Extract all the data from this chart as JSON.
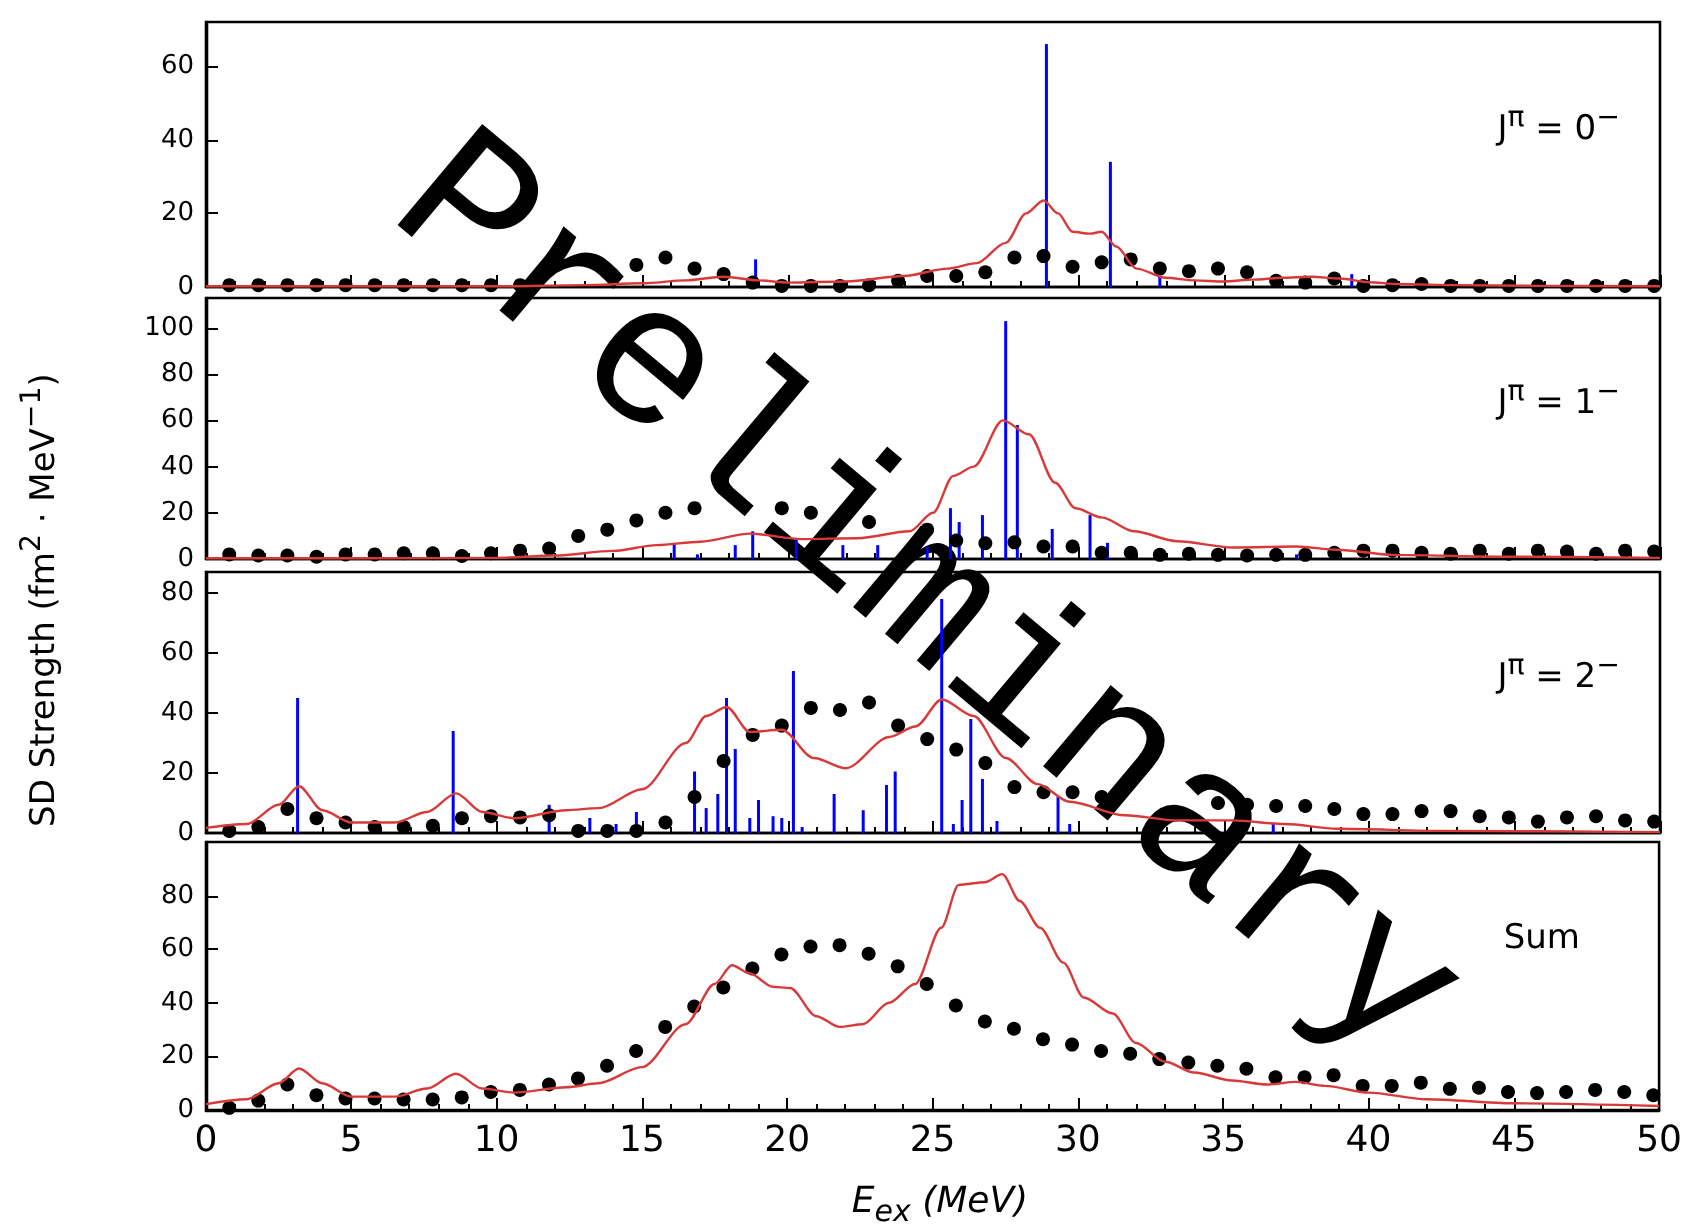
{
  "chart_data": [
    {
      "type": "scatter",
      "annotations": [
        "J$^{π}$ = 0$^{−}$",
        "Preliminary"
      ],
      "xlim": [
        0,
        50
      ],
      "xticks": [
        0,
        5,
        10,
        15,
        20,
        25,
        30,
        35,
        40,
        45,
        50
      ],
      "ylim": [
        0,
        72
      ],
      "yticks": [
        0,
        20,
        40,
        60
      ],
      "tick_labels": "y",
      "grid": false,
      "series": [
        {
          "type": "bar",
          "color": "#0000ff",
          "x": [
            18.9,
            28.9,
            31.1,
            32.8,
            39.4
          ],
          "values": [
            7.5,
            66,
            34,
            3,
            3.5
          ]
        },
        {
          "type": "line",
          "color": "#d83a3a",
          "marker": "none",
          "x": [
            0,
            5,
            10,
            13,
            15,
            16.5,
            17.8,
            19,
            20,
            22,
            24,
            25.5,
            26.5,
            27.5,
            28.2,
            28.8,
            29.3,
            29.8,
            30.4,
            30.8,
            31.3,
            32,
            33,
            34,
            35,
            36,
            37,
            38,
            39,
            40,
            41,
            43,
            46,
            50
          ],
          "values": [
            0.2,
            0.2,
            0.2,
            0.5,
            1,
            1.8,
            2.8,
            1.8,
            1.2,
            1.5,
            3,
            5,
            6.5,
            12,
            20,
            23.5,
            20,
            15,
            14.5,
            15,
            11,
            5,
            2.5,
            1.8,
            1.5,
            2,
            2.5,
            2.8,
            2.3,
            1.3,
            0.8,
            0.5,
            0.3,
            0.2
          ]
        },
        {
          "color": "#000000",
          "marker": "circle",
          "x": [
            0.8,
            1.8,
            2.8,
            3.8,
            4.8,
            5.8,
            6.8,
            7.8,
            8.8,
            9.8,
            10.8,
            11.8,
            12.8,
            13.8,
            14.8,
            15.8,
            16.8,
            17.8,
            18.8,
            19.8,
            20.8,
            21.8,
            22.8,
            23.8,
            24.8,
            25.8,
            26.8,
            27.8,
            28.8,
            29.8,
            30.8,
            31.8,
            32.8,
            33.8,
            34.8,
            35.8,
            36.8,
            37.8,
            38.8,
            39.8,
            40.8,
            41.8,
            42.8,
            43.8,
            44.8,
            45.8,
            46.8,
            47.8,
            48.8,
            49.8
          ],
          "values": [
            0.5,
            0.5,
            0.5,
            0.5,
            0.5,
            0.5,
            0.5,
            0.5,
            0.5,
            0.5,
            0.5,
            null,
            null,
            null,
            6,
            8,
            5,
            3.5,
            1.2,
            0.3,
            0.3,
            0.3,
            0.5,
            1.7,
            3,
            3,
            4,
            8,
            8.4,
            5.5,
            6.7,
            7.5,
            5,
            4.3,
            5,
            4,
            1.7,
            1.2,
            2.3,
            0.3,
            0.5,
            0.8,
            0.3,
            0.3,
            0.3,
            0.3,
            0.3,
            0.3,
            0.3,
            0.3
          ]
        }
      ]
    },
    {
      "type": "scatter",
      "annotations": [
        "J$^{π}$ = 1$^{−}$"
      ],
      "ylabel": "SD Strength (fm$^{2}$ · MeV$^{−1}$)",
      "xlim": [
        0,
        50
      ],
      "xticks": [
        0,
        5,
        10,
        15,
        20,
        25,
        30,
        35,
        40,
        45,
        50
      ],
      "ylim": [
        0,
        113
      ],
      "yticks": [
        0,
        20,
        40,
        60,
        80,
        100
      ],
      "tick_labels": "y",
      "grid": false,
      "series": [
        {
          "type": "bar",
          "color": "#0000ff",
          "x": [
            16.1,
            16.9,
            18.2,
            18.8,
            20.3,
            21.9,
            23.1,
            24.8,
            25.6,
            25.9,
            26.7,
            27.5,
            27.9,
            29.1,
            30.4,
            31,
            37.5
          ],
          "values": [
            7,
            2,
            6,
            12,
            9,
            6,
            6,
            5,
            22,
            16,
            19,
            103,
            58,
            13,
            19,
            7,
            2
          ]
        },
        {
          "type": "line",
          "color": "#d83a3a",
          "marker": "none",
          "x": [
            0,
            5,
            10,
            12,
            14,
            15.5,
            17,
            18.7,
            20.5,
            22.4,
            24.2,
            25,
            25.7,
            26.4,
            27.4,
            28.3,
            29.2,
            29.9,
            30.8,
            31.9,
            33.4,
            35.3,
            37.5,
            38.9,
            40.8,
            44.5,
            50
          ],
          "values": [
            0.3,
            0.3,
            0.5,
            1.5,
            3.5,
            6,
            7.5,
            11,
            8.6,
            9,
            12,
            20,
            36,
            40,
            60,
            54,
            33,
            22,
            18,
            12,
            7.7,
            5,
            5.4,
            4,
            1.8,
            1,
            0.5
          ]
        },
        {
          "color": "#000000",
          "marker": "circle",
          "x": [
            0.8,
            1.8,
            2.8,
            3.8,
            4.8,
            5.8,
            6.8,
            7.8,
            8.8,
            9.8,
            10.8,
            11.8,
            12.8,
            13.8,
            14.8,
            15.8,
            16.8,
            17.8,
            18.8,
            19.8,
            20.8,
            21.8,
            22.8,
            23.8,
            24.8,
            25.8,
            26.8,
            27.8,
            28.8,
            29.8,
            30.8,
            31.8,
            32.8,
            33.8,
            34.8,
            35.8,
            36.8,
            37.8,
            38.8,
            39.8,
            40.8,
            41.8,
            42.8,
            43.8,
            44.8,
            45.8,
            46.8,
            47.8,
            48.8,
            49.8
          ],
          "values": [
            2,
            1.5,
            1.5,
            1,
            2,
            2,
            2.5,
            2.5,
            1.3,
            2.5,
            3.6,
            4.5,
            10,
            12.7,
            16.7,
            20,
            22,
            null,
            null,
            22,
            20,
            null,
            16,
            null,
            12.7,
            8,
            6.8,
            7.2,
            5.4,
            5.4,
            2.7,
            2.7,
            1.8,
            2.3,
            1.8,
            1.5,
            1.8,
            1.8,
            2.7,
            3.6,
            3.6,
            2.7,
            2.3,
            3.6,
            2.3,
            3.6,
            3.2,
            2.3,
            3.6,
            3.2
          ]
        }
      ]
    },
    {
      "type": "scatter",
      "annotations": [
        "J$^{π}$ = 2$^{−}$"
      ],
      "xlim": [
        0,
        50
      ],
      "xticks": [
        0,
        5,
        10,
        15,
        20,
        25,
        30,
        35,
        40,
        45,
        50
      ],
      "ylim": [
        0,
        87
      ],
      "yticks": [
        0,
        20,
        40,
        60,
        80
      ],
      "tick_labels": "y",
      "grid": false,
      "series": [
        {
          "type": "bar",
          "color": "#0000ff",
          "x": [
            3.15,
            8.5,
            11.8,
            13.2,
            14.1,
            14.8,
            16.8,
            17.2,
            17.6,
            17.9,
            18.2,
            18.7,
            19,
            19.5,
            19.8,
            20.2,
            20.5,
            21.6,
            22.6,
            23.4,
            23.7,
            25.3,
            25.7,
            26,
            26.3,
            26.7,
            27.2,
            29.3,
            29.7,
            36.7
          ],
          "values": [
            45,
            34,
            9.4,
            5,
            3,
            7,
            20.5,
            8.3,
            13,
            45,
            28,
            5,
            11,
            5.6,
            5,
            54,
            2,
            13,
            7.6,
            16,
            20.5,
            78,
            3,
            11,
            38,
            18,
            4,
            12,
            3,
            3
          ]
        },
        {
          "type": "line",
          "color": "#d83a3a",
          "marker": "none",
          "x": [
            0,
            1.4,
            2.5,
            3.2,
            4,
            5,
            6.5,
            7.6,
            8.6,
            9.5,
            10.6,
            12.4,
            13.5,
            15,
            16.5,
            17.2,
            17.9,
            18.7,
            19.8,
            20.9,
            22,
            23.5,
            24.4,
            25.3,
            26.4,
            27.5,
            28.6,
            29.7,
            31.6,
            33.4,
            35.3,
            37.1,
            38.9,
            42.6,
            50
          ],
          "values": [
            1.7,
            3,
            9.4,
            15.6,
            7.6,
            3.5,
            3.5,
            7,
            13.2,
            7,
            4.9,
            7.6,
            8.3,
            14.6,
            30,
            39,
            42,
            33.7,
            34.4,
            25,
            21.6,
            32,
            35.5,
            44.5,
            39,
            25,
            16.3,
            10.4,
            5.9,
            4.2,
            4.2,
            3,
            1.4,
            0.7,
            0.3
          ]
        },
        {
          "color": "#000000",
          "marker": "circle",
          "x": [
            0.8,
            1.8,
            2.8,
            3.8,
            4.8,
            5.8,
            6.8,
            7.8,
            8.8,
            9.8,
            10.8,
            11.8,
            12.8,
            13.8,
            14.8,
            15.8,
            16.8,
            17.8,
            18.8,
            19.8,
            20.8,
            21.8,
            22.8,
            23.8,
            24.8,
            25.8,
            26.8,
            27.8,
            28.8,
            29.8,
            30.8,
            31.8,
            32.8,
            33.8,
            34.8,
            35.8,
            36.8,
            37.8,
            38.8,
            39.8,
            40.8,
            41.8,
            42.8,
            43.8,
            44.8,
            45.8,
            46.8,
            47.8,
            48.8,
            49.8
          ],
          "values": [
            0.7,
            2,
            8,
            4.9,
            3.5,
            2,
            2,
            2.4,
            4.9,
            5.6,
            5.2,
            5.9,
            0.7,
            0.7,
            0.7,
            3.5,
            12,
            24,
            32.7,
            35.8,
            41.7,
            41,
            43.5,
            35.8,
            31.3,
            27.8,
            23.3,
            15.3,
            13.6,
            13.6,
            12,
            null,
            null,
            null,
            10,
            9.4,
            9,
            9,
            8,
            6.3,
            6.3,
            7.3,
            7.3,
            5.6,
            5.2,
            3.8,
            5.2,
            5.6,
            4.2,
            3.8
          ]
        }
      ]
    },
    {
      "type": "scatter",
      "annotations": [
        "Sum"
      ],
      "xlabel": "E$_{ex}$ (MeV)",
      "xlim": [
        0,
        50
      ],
      "xticks": [
        0,
        5,
        10,
        15,
        20,
        25,
        30,
        35,
        40,
        45,
        50
      ],
      "ylim": [
        0,
        100
      ],
      "yticks": [
        0,
        20,
        40,
        60,
        80
      ],
      "grid": false,
      "series": [
        {
          "type": "line",
          "color": "#d83a3a",
          "marker": "none",
          "x": [
            0,
            1.4,
            2.5,
            3.2,
            4,
            5,
            6.5,
            7.6,
            8.6,
            9.5,
            10.6,
            12.4,
            13.5,
            15,
            16.5,
            17.5,
            18.1,
            18.7,
            19.5,
            20.1,
            21,
            21.8,
            22.6,
            23.5,
            24.4,
            25.3,
            25.9,
            26.8,
            27.4,
            28,
            28.7,
            29.5,
            30.2,
            31.2,
            32,
            33,
            34,
            35.3,
            36.5,
            37.5,
            38.5,
            40,
            42,
            45,
            50
          ],
          "values": [
            2.2,
            4,
            10,
            15.5,
            10,
            5,
            5,
            8,
            13.5,
            8,
            6.5,
            8.5,
            10,
            16,
            32,
            47,
            54,
            51,
            46,
            45.5,
            35,
            31,
            32,
            40,
            47,
            68,
            84,
            85,
            88,
            78,
            68,
            55,
            42,
            36,
            25,
            18,
            14,
            11,
            9.5,
            10.5,
            9,
            6.5,
            4,
            2.5,
            1.5
          ]
        },
        {
          "color": "#000000",
          "marker": "circle",
          "x": [
            0.8,
            1.8,
            2.8,
            3.8,
            4.8,
            5.8,
            6.8,
            7.8,
            8.8,
            9.8,
            10.8,
            11.8,
            12.8,
            13.8,
            14.8,
            15.8,
            16.8,
            17.8,
            18.8,
            19.8,
            20.8,
            21.8,
            22.8,
            23.8,
            24.8,
            25.8,
            26.8,
            27.8,
            28.8,
            29.8,
            30.8,
            31.8,
            32.8,
            33.8,
            34.8,
            35.8,
            36.8,
            37.8,
            38.8,
            39.8,
            40.8,
            41.8,
            42.8,
            43.8,
            44.8,
            45.8,
            46.8,
            47.8,
            48.8,
            49.8
          ],
          "values": [
            0.8,
            3.5,
            9.5,
            5.5,
            4.3,
            4.3,
            3.9,
            3.9,
            4.7,
            6.7,
            7.5,
            9.5,
            11.8,
            16.5,
            22,
            31,
            38.6,
            45.7,
            52.8,
            58,
            61,
            61.5,
            58.3,
            53.6,
            47,
            39,
            33,
            30.3,
            26.4,
            24.4,
            22,
            21,
            19,
            17.7,
            16.5,
            15.4,
            12.2,
            12.2,
            13,
            9,
            9,
            10.2,
            7.9,
            8.3,
            6.7,
            6.3,
            6.7,
            7.5,
            6.7,
            5.5
          ]
        }
      ]
    }
  ]
}
